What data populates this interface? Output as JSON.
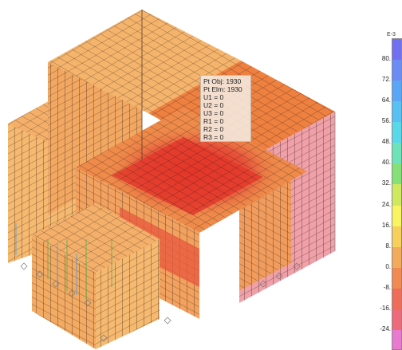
{
  "tooltip": {
    "lines": [
      "Pt Obj: 1930",
      "Pt Elm: 1930",
      "U1 = 0",
      "U2 = 0",
      "U3 = 0",
      "R1 = 0",
      "R2 = 0",
      "R3 = 0"
    ]
  },
  "legend": {
    "units": "E-3",
    "ticks": [
      "80.",
      "72.",
      "64.",
      "56.",
      "48.",
      "40.",
      "32.",
      "24.",
      "16.",
      "8.",
      "0.",
      "-8.",
      "-16.",
      "-24."
    ],
    "colors": [
      "#7070f0",
      "#6a8cf4",
      "#5aa6f6",
      "#59c0f4",
      "#58d8e8",
      "#6ee2b8",
      "#86e078",
      "#cfe860",
      "#f8f560",
      "#f6d05a",
      "#f3aa5a",
      "#f08a50",
      "#ee6c58",
      "#ec6a7a",
      "#e97ad0"
    ]
  },
  "model": {
    "colors": {
      "face_light": "#f6b970",
      "face_mid": "#f19c5c",
      "face_orange": "#ee8a4a",
      "face_red": "#e84a3a",
      "face_deep_red": "#e02a28",
      "face_pink": "#f0a0a8",
      "mesh_line": "#2a1a12"
    }
  }
}
